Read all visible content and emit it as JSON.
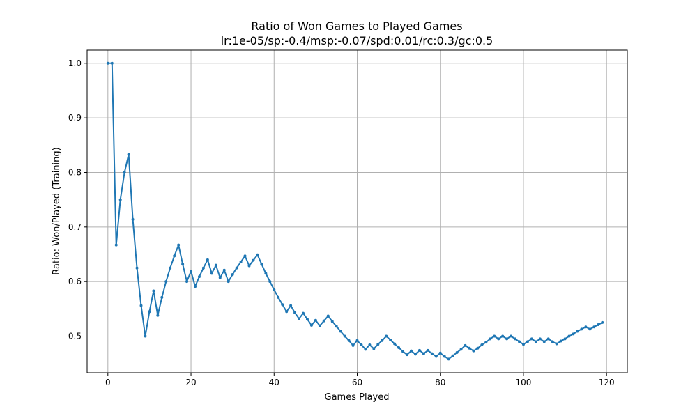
{
  "chart_data": {
    "type": "line",
    "title": "Ratio of Won Games to Played Games",
    "subtitle": "lr:1e-05/sp:-0.4/msp:-0.07/spd:0.01/rc:0.3/gc:0.5",
    "xlabel": "Games Played",
    "ylabel": "Ratio: Won/Played (Training)",
    "xlim": [
      -5,
      125
    ],
    "ylim": [
      0.433,
      1.024
    ],
    "xticks": [
      0,
      20,
      40,
      60,
      80,
      100,
      120
    ],
    "yticks": [
      0.5,
      0.6,
      0.7,
      0.8,
      0.9,
      1.0
    ],
    "xtick_labels": [
      "0",
      "20",
      "40",
      "60",
      "80",
      "100",
      "120"
    ],
    "ytick_labels": [
      "0.5",
      "0.6",
      "0.7",
      "0.8",
      "0.9",
      "1.0"
    ],
    "grid": true,
    "line_color": "#1f77b4",
    "series": [
      {
        "x": [
          0,
          1,
          2,
          3,
          4,
          5,
          6,
          7,
          8,
          9,
          10,
          11,
          12,
          13,
          14,
          15,
          16,
          17,
          18,
          19,
          20,
          21,
          22,
          23,
          24,
          25,
          26,
          27,
          28,
          29,
          30,
          31,
          32,
          33,
          34,
          35,
          36,
          37,
          38,
          39,
          40,
          41,
          42,
          43,
          44,
          45,
          46,
          47,
          48,
          49,
          50,
          51,
          52,
          53,
          54,
          55,
          56,
          57,
          58,
          59,
          60,
          61,
          62,
          63,
          64,
          65,
          66,
          67,
          68,
          69,
          70,
          71,
          72,
          73,
          74,
          75,
          76,
          77,
          78,
          79,
          80,
          81,
          82,
          83,
          84,
          85,
          86,
          87,
          88,
          89,
          90,
          91,
          92,
          93,
          94,
          95,
          96,
          97,
          98,
          99,
          100,
          101,
          102,
          103,
          104,
          105,
          106,
          107,
          108,
          109,
          110,
          111,
          112,
          113,
          114,
          115,
          116,
          117,
          118,
          119
        ],
        "values": [
          1.0,
          1.0,
          0.667,
          0.75,
          0.8,
          0.833,
          0.714,
          0.625,
          0.556,
          0.5,
          0.545,
          0.583,
          0.538,
          0.571,
          0.6,
          0.625,
          0.647,
          0.667,
          0.632,
          0.6,
          0.619,
          0.591,
          0.609,
          0.625,
          0.64,
          0.615,
          0.63,
          0.607,
          0.621,
          0.6,
          0.613,
          0.625,
          0.636,
          0.647,
          0.629,
          0.639,
          0.649,
          0.632,
          0.615,
          0.6,
          0.585,
          0.571,
          0.558,
          0.545,
          0.556,
          0.543,
          0.532,
          0.542,
          0.531,
          0.52,
          0.529,
          0.519,
          0.528,
          0.537,
          0.527,
          0.518,
          0.509,
          0.5,
          0.492,
          0.483,
          0.492,
          0.484,
          0.476,
          0.484,
          0.477,
          0.485,
          0.492,
          0.5,
          0.493,
          0.486,
          0.479,
          0.472,
          0.466,
          0.473,
          0.467,
          0.474,
          0.468,
          0.474,
          0.468,
          0.463,
          0.469,
          0.463,
          0.458,
          0.464,
          0.47,
          0.476,
          0.483,
          0.478,
          0.473,
          0.478,
          0.484,
          0.489,
          0.495,
          0.5,
          0.495,
          0.5,
          0.495,
          0.5,
          0.495,
          0.49,
          0.485,
          0.49,
          0.495,
          0.49,
          0.495,
          0.49,
          0.495,
          0.49,
          0.486,
          0.491,
          0.495,
          0.5,
          0.504,
          0.509,
          0.513,
          0.517,
          0.513,
          0.517,
          0.521,
          0.525
        ]
      }
    ]
  }
}
